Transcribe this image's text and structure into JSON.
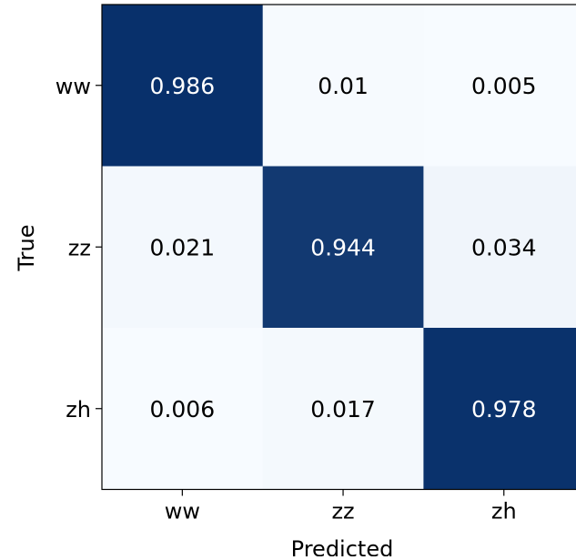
{
  "chart_data": {
    "type": "heatmap",
    "xlabel": "Predicted",
    "ylabel": "True",
    "x_categories": [
      "ww",
      "zz",
      "zh"
    ],
    "y_categories": [
      "ww",
      "zz",
      "zh"
    ],
    "values": [
      [
        0.986,
        0.01,
        0.005
      ],
      [
        0.021,
        0.944,
        0.034
      ],
      [
        0.006,
        0.017,
        0.978
      ]
    ],
    "value_labels": [
      [
        "0.986",
        "0.01",
        "0.005"
      ],
      [
        "0.021",
        "0.944",
        "0.034"
      ],
      [
        "0.006",
        "0.017",
        "0.978"
      ]
    ],
    "colormap": "Blues",
    "color_low": "#f7fbff",
    "color_high": "#08306b",
    "text_color_dark": "#000000",
    "text_color_light": "#ffffff"
  }
}
